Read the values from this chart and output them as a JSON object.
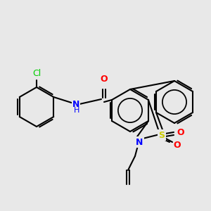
{
  "bg_color": "#e8e8e8",
  "atom_colors": {
    "C": "#000000",
    "N": "#0000ff",
    "O": "#ff0000",
    "S": "#cccc00",
    "Cl": "#00cc00",
    "H": "#0000ff"
  },
  "bond_color": "#000000",
  "figsize": [
    3.0,
    3.0
  ],
  "dpi": 100
}
